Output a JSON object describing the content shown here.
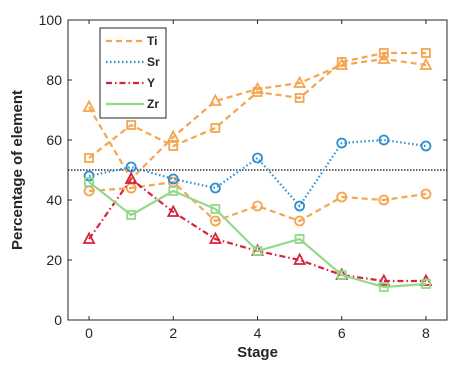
{
  "chart_data": {
    "type": "line",
    "xlabel": "Stage",
    "ylabel": "Percentage of element",
    "xlim": [
      -0.5,
      8.5
    ],
    "ylim": [
      0,
      100
    ],
    "xticks": [
      0,
      2,
      4,
      6,
      8
    ],
    "yticks": [
      0,
      20,
      40,
      60,
      80,
      100
    ],
    "reference_line": 50,
    "grid": false,
    "legend_position": "top-left",
    "x": [
      0,
      1,
      2,
      3,
      4,
      5,
      6,
      7,
      8
    ],
    "series": [
      {
        "name": "Ti",
        "color": "#f5a54e",
        "dash": "6,4",
        "marker": "triangle",
        "values": [
          71,
          47,
          61,
          73,
          77,
          79,
          85,
          87,
          85
        ]
      },
      {
        "name": "",
        "color": "#f5a54e",
        "dash": "6,4",
        "marker": "square",
        "values": [
          54,
          65,
          58,
          64,
          76,
          74,
          86,
          89,
          89
        ]
      },
      {
        "name": "",
        "color": "#f5a54e",
        "dash": "6,4",
        "marker": "circle",
        "values": [
          43,
          44,
          46,
          33,
          38,
          33,
          41,
          40,
          42
        ]
      },
      {
        "name": "Sr",
        "color": "#2f8fd1",
        "dash": "1.5,2.5",
        "marker": "circle",
        "values": [
          48,
          51,
          47,
          44,
          54,
          38,
          59,
          60,
          58
        ]
      },
      {
        "name": "Y",
        "color": "#d6223c",
        "dash": "6,3,1.5,3",
        "marker": "triangle",
        "values": [
          27,
          47,
          36,
          27,
          23,
          20,
          15,
          13,
          13
        ]
      },
      {
        "name": "Zr",
        "color": "#93d98a",
        "dash": "",
        "marker": "square",
        "values": [
          46,
          35,
          43,
          37,
          23,
          27,
          15,
          11,
          12
        ]
      }
    ]
  }
}
